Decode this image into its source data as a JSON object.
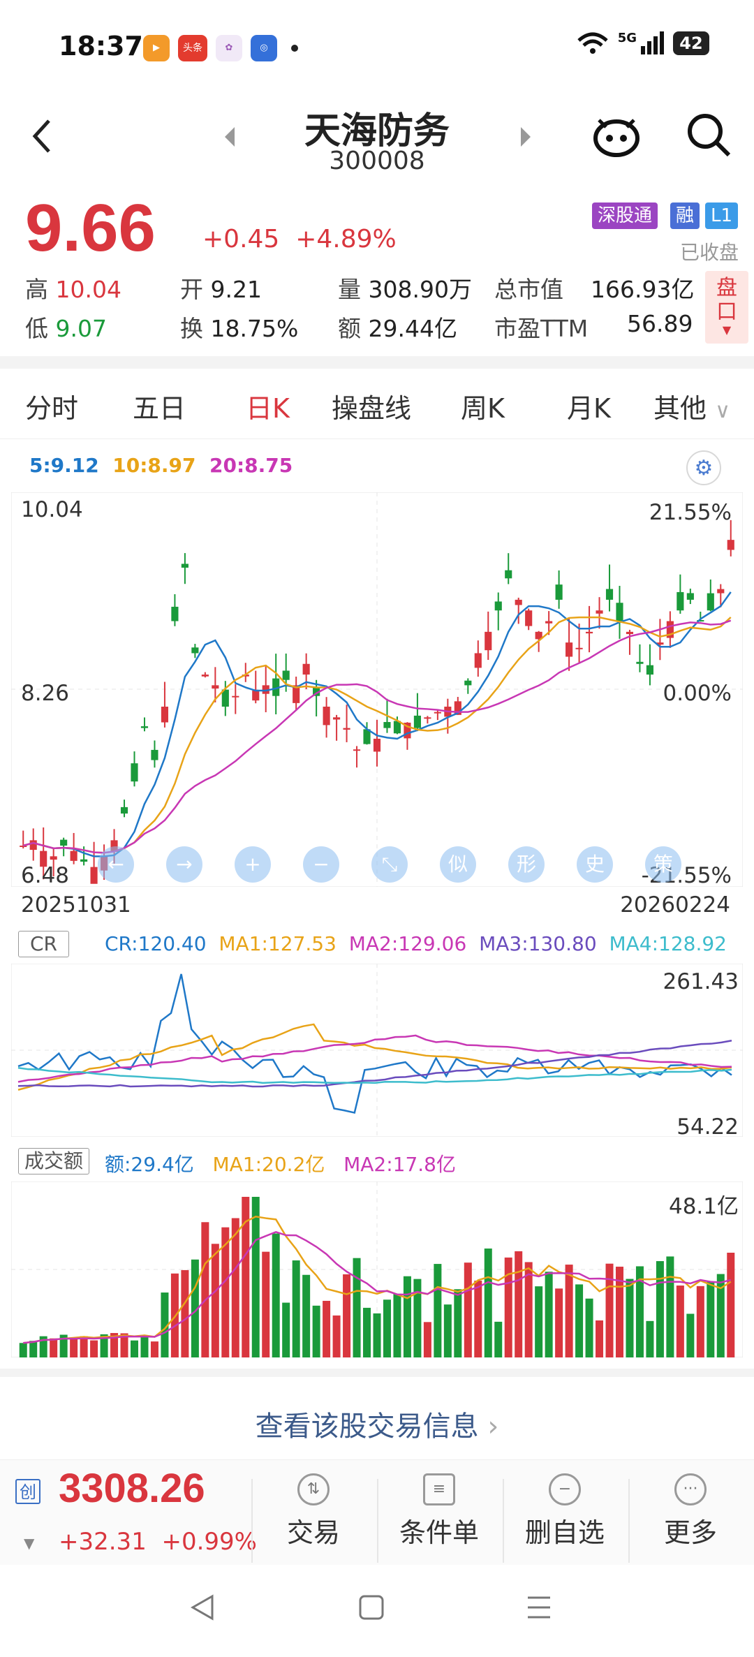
{
  "status": {
    "time": "18:37",
    "network": "5G",
    "battery": "42",
    "app_icons": [
      "video-app-icon",
      "toutiao-app-icon",
      "photos-app-icon",
      "browser-app-icon"
    ]
  },
  "header": {
    "stock_name": "天海防务",
    "stock_code": "300008"
  },
  "quote": {
    "price": "9.66",
    "change": "+0.45",
    "change_pct": "+4.89%",
    "badges": [
      "深股通",
      "融",
      "L1"
    ],
    "status": "已收盘",
    "high_label": "高",
    "high": "10.04",
    "low_label": "低",
    "low": "9.07",
    "open_label": "开",
    "open": "9.21",
    "turnover_label": "换",
    "turnover": "18.75%",
    "volume_label": "量",
    "volume": "308.90万",
    "amount_label": "额",
    "amount": "29.44亿",
    "mcap_label": "总市值",
    "mcap": "166.93亿",
    "pe_label": "市盈TTM",
    "pe": "56.89",
    "pankou": "盘口"
  },
  "tabs": [
    "分时",
    "五日",
    "日K",
    "操盘线",
    "周K",
    "月K",
    "其他"
  ],
  "active_tab": "日K",
  "kline": {
    "ma5": "5:9.12",
    "ma10": "10:8.97",
    "ma20": "20:8.75",
    "y_top": "10.04",
    "y_mid": "8.26",
    "y_bot": "6.48",
    "pct_top": "21.55%",
    "pct_mid": "0.00%",
    "pct_bot": "-21.55%",
    "date_start": "20251031",
    "date_end": "20260224",
    "tool_buttons": [
      "←",
      "→",
      "+",
      "−",
      "⤡",
      "似",
      "形",
      "史",
      "策"
    ]
  },
  "cr": {
    "name": "CR",
    "cr": "CR:120.40",
    "ma1": "MA1:127.53",
    "ma2": "MA2:129.06",
    "ma3": "MA3:130.80",
    "ma4": "MA4:128.92",
    "y_top": "261.43",
    "y_bot": "54.22"
  },
  "turnover_panel": {
    "name": "成交额",
    "amount": "额:29.4亿",
    "ma1": "MA1:20.2亿",
    "ma2": "MA2:17.8亿",
    "y_top": "48.1亿"
  },
  "info_link": "查看该股交易信息",
  "bottom": {
    "index_tag": "创",
    "index_value": "3308.26",
    "index_change": "+32.31",
    "index_pct": "+0.99%",
    "actions": [
      "交易",
      "条件单",
      "删自选",
      "更多"
    ]
  },
  "colors": {
    "up": "#d9363e",
    "down": "#1a9a3a",
    "ma5": "#1f78c8",
    "ma10": "#e8a317",
    "ma20": "#c837b4",
    "ma3": "#6a4cbd",
    "ma4": "#3dbccc"
  }
}
